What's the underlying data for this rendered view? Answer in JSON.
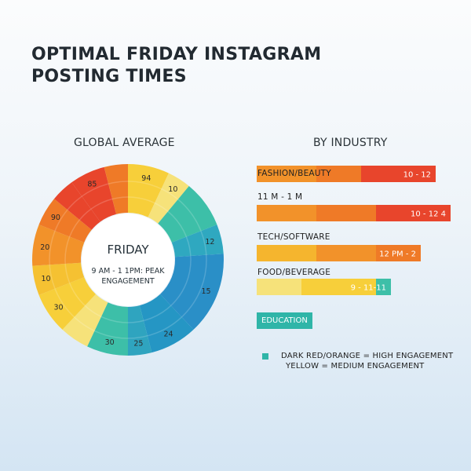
{
  "title": {
    "line1": "OPTIMAL FRIDAY INSTAGRAM",
    "line2": "POSTING TIMES"
  },
  "global": {
    "heading": "GLOBAL AVERAGE",
    "center_title": "FRIDAY",
    "center_line1": "9 AM - 1 1PM: PEAK",
    "center_line2": "ENGAGEMENT"
  },
  "industry": {
    "heading": "BY INDUSTRY",
    "education_label": "EDUCATION"
  },
  "legend": {
    "line1": "DARK RED/ORANGE = HIGH ENGAGEMENT",
    "line2": "YELLOW = MEDIUM ENGAGEMENT"
  },
  "colors": {
    "red": "#e8452c",
    "orange": "#f2922a",
    "yellow": "#f7cf3a",
    "light_yellow": "#f6e27a",
    "teal": "#3dbfa8",
    "blue": "#2a8fc7"
  },
  "chart_data": [
    {
      "type": "pie",
      "title": "GLOBAL AVERAGE",
      "center_label": "FRIDAY",
      "segments": [
        {
          "label": "94",
          "value": 7,
          "color": "#f7cf3a"
        },
        {
          "label": "10",
          "value": 4,
          "color": "#f6e27a"
        },
        {
          "label": "",
          "value": 8,
          "color": "#3dbfa8"
        },
        {
          "label": "12",
          "value": 5,
          "color": "#2fa8c0"
        },
        {
          "label": "15",
          "value": 14,
          "color": "#2a8fc7"
        },
        {
          "label": "24",
          "value": 8,
          "color": "#2596c4"
        },
        {
          "label": "25",
          "value": 4,
          "color": "#2fa4bf"
        },
        {
          "label": "30",
          "value": 7,
          "color": "#3dbfa8"
        },
        {
          "label": "",
          "value": 5,
          "color": "#f6e27a"
        },
        {
          "label": "30",
          "value": 7,
          "color": "#f7cf3a"
        },
        {
          "label": "10",
          "value": 5,
          "color": "#f5c132"
        },
        {
          "label": "20",
          "value": 7,
          "color": "#f2922a"
        },
        {
          "label": "90",
          "value": 5,
          "color": "#ef7a27"
        },
        {
          "label": "",
          "value": 4,
          "color": "#e8452c"
        },
        {
          "label": "85",
          "value": 6,
          "color": "#e8452c"
        },
        {
          "label": "",
          "value": 4,
          "color": "#ef7a27"
        }
      ]
    },
    {
      "type": "bar",
      "title": "BY INDUSTRY",
      "categories": [
        "FASHION/BEAUTY",
        "11 M - 1 M",
        "TECH/SOFTWARE",
        "FOOD/BEVERAGE"
      ],
      "value_labels": [
        "10 - 12",
        "10 - 12 4",
        "12 PM - 2",
        "9 - 11-11"
      ],
      "segments": [
        [
          {
            "value": 4,
            "color": "#f2922a"
          },
          {
            "value": 3,
            "color": "#ef7a27"
          },
          {
            "value": 5,
            "color": "#e8452c"
          }
        ],
        [
          {
            "value": 4,
            "color": "#f2922a"
          },
          {
            "value": 4,
            "color": "#ef7a27"
          },
          {
            "value": 5,
            "color": "#e8452c"
          }
        ],
        [
          {
            "value": 4,
            "color": "#f5b52e"
          },
          {
            "value": 4,
            "color": "#f2922a"
          },
          {
            "value": 3,
            "color": "#ef7a27"
          }
        ],
        [
          {
            "value": 3,
            "color": "#f6e27a"
          },
          {
            "value": 5,
            "color": "#f7cf3a"
          },
          {
            "value": 1,
            "color": "#3dbfa8"
          }
        ]
      ],
      "xlim": [
        0,
        12
      ]
    }
  ]
}
